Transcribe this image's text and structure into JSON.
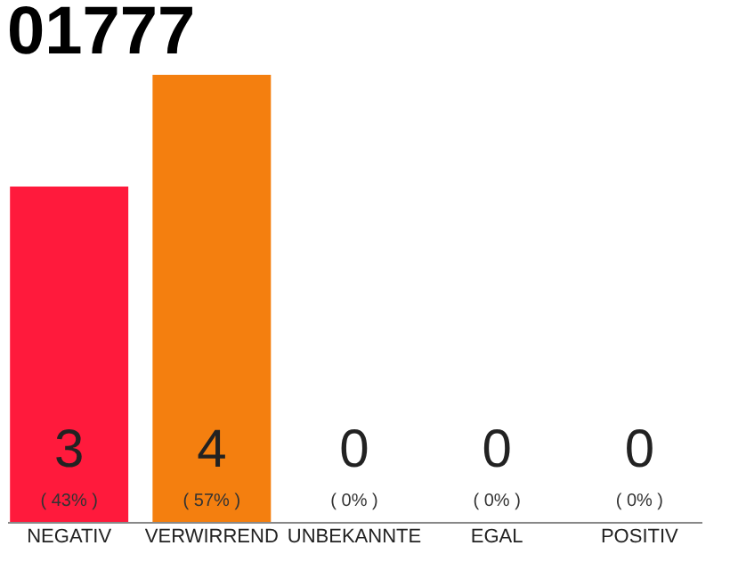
{
  "chart_data": {
    "type": "bar",
    "title": "01777",
    "categories": [
      "NEGATIV",
      "VERWIRREND",
      "UNBEKANNTE",
      "EGAL",
      "POSITIV"
    ],
    "values": [
      3,
      4,
      0,
      0,
      0
    ],
    "colors": [
      "#ff1a3c",
      "#f47f0f",
      "#e6e6e6",
      "#e6e6e6",
      "#e6e6e6"
    ],
    "ylim": [
      0,
      4
    ],
    "tick_labels": "x",
    "data_labels": true,
    "grid": false,
    "annotations": [
      {
        "text": "( 43% )",
        "x": "NEGATIV",
        "y": 0
      },
      {
        "text": "( 57% )",
        "x": "VERWIRREND",
        "y": 0
      },
      {
        "text": "( 0% )",
        "x": "UNBEKANNTE",
        "y": 0
      },
      {
        "text": "( 0% )",
        "x": "EGAL",
        "y": 0
      },
      {
        "text": "( 0% )",
        "x": "POSITIV",
        "y": 0
      }
    ]
  }
}
